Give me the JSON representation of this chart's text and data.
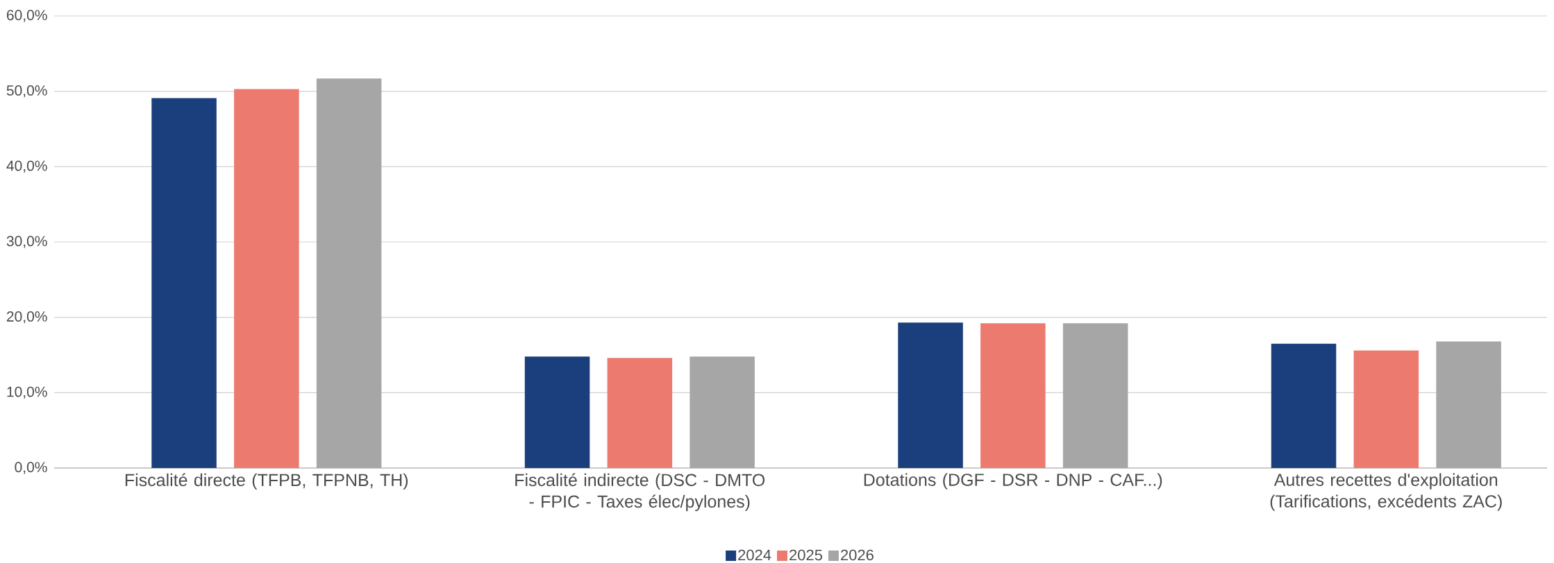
{
  "chart_data": {
    "type": "bar",
    "categories": [
      "Fiscalité directe (TFPB, TFPNB, TH)",
      "Fiscalité indirecte (DSC - DMTO - FPIC - Taxes élec/pylones)",
      "Dotations (DGF - DSR - DNP - CAF...)",
      "Autres recettes d'exploitation (Tarifications, excédents ZAC)"
    ],
    "series": [
      {
        "name": "2024",
        "color": "#1a3f7c",
        "values": [
          49.1,
          14.8,
          19.3,
          16.5
        ]
      },
      {
        "name": "2025",
        "color": "#ec7a6f",
        "values": [
          50.3,
          14.6,
          19.2,
          15.6
        ]
      },
      {
        "name": "2026",
        "color": "#a6a6a6",
        "values": [
          51.7,
          14.8,
          19.2,
          16.8
        ]
      }
    ],
    "ylim": [
      0,
      60
    ],
    "yticks": [
      {
        "value": 0,
        "label": "0,0%"
      },
      {
        "value": 10,
        "label": "10,0%"
      },
      {
        "value": 20,
        "label": "20,0%"
      },
      {
        "value": 30,
        "label": "30,0%"
      },
      {
        "value": 40,
        "label": "40,0%"
      },
      {
        "value": 50,
        "label": "50,0%"
      },
      {
        "value": 60,
        "label": "60,0%"
      }
    ],
    "grid": "y",
    "legend": "bottom"
  }
}
